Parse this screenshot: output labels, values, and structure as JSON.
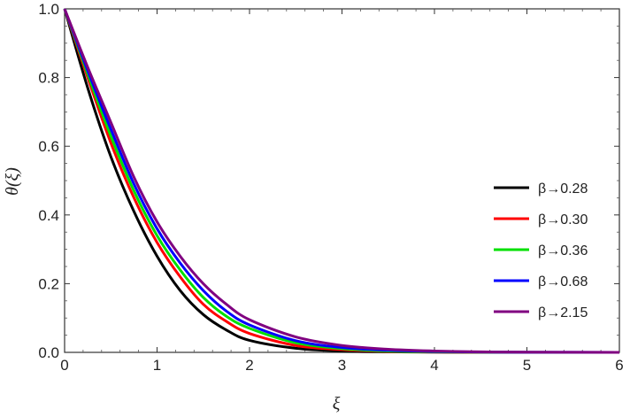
{
  "chart_data": {
    "type": "line",
    "xlabel": "ξ",
    "ylabel": "θ(ξ)",
    "xlim": [
      0,
      6
    ],
    "ylim": [
      0,
      1
    ],
    "xticks": [
      "0",
      "1",
      "2",
      "3",
      "4",
      "5",
      "6"
    ],
    "yticks": [
      "0.0",
      "0.2",
      "0.4",
      "0.6",
      "0.8",
      "1.0"
    ],
    "grid": false,
    "legend_position": "right",
    "x": [
      0,
      0.25,
      0.5,
      0.75,
      1.0,
      1.25,
      1.5,
      1.75,
      2.0,
      2.5,
      3.0,
      3.5,
      4.0,
      4.5,
      5.0,
      6.0
    ],
    "series": [
      {
        "name": "β→0.28",
        "color": "#000000",
        "values": [
          1.0,
          0.77,
          0.57,
          0.41,
          0.28,
          0.18,
          0.11,
          0.065,
          0.035,
          0.012,
          0.004,
          0.0015,
          0.0005,
          0.0002,
          0.0001,
          0.0
        ]
      },
      {
        "name": "β→0.30",
        "color": "#ff0000",
        "values": [
          1.0,
          0.8,
          0.61,
          0.45,
          0.32,
          0.22,
          0.14,
          0.09,
          0.055,
          0.02,
          0.008,
          0.003,
          0.001,
          0.0004,
          0.0001,
          0.0
        ]
      },
      {
        "name": "β→0.36",
        "color": "#00e000",
        "values": [
          1.0,
          0.81,
          0.63,
          0.47,
          0.34,
          0.24,
          0.16,
          0.105,
          0.07,
          0.028,
          0.011,
          0.004,
          0.0015,
          0.0005,
          0.0002,
          0.0
        ]
      },
      {
        "name": "β→0.68",
        "color": "#0000ff",
        "values": [
          1.0,
          0.82,
          0.65,
          0.49,
          0.36,
          0.26,
          0.18,
          0.12,
          0.08,
          0.034,
          0.014,
          0.006,
          0.0025,
          0.001,
          0.0004,
          0.0
        ]
      },
      {
        "name": "β→2.15",
        "color": "#800080",
        "values": [
          1.0,
          0.83,
          0.67,
          0.51,
          0.38,
          0.28,
          0.2,
          0.14,
          0.095,
          0.045,
          0.02,
          0.009,
          0.004,
          0.0015,
          0.0006,
          0.0
        ]
      }
    ]
  }
}
